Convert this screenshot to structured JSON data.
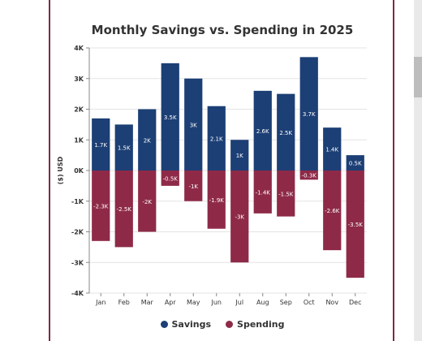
{
  "chart_data": {
    "type": "bar",
    "title": "Monthly Savings vs. Spending in 2025",
    "ylabel": "($) USD",
    "xlabel": "",
    "ylim": [
      -4000,
      4000
    ],
    "yticks": [
      4000,
      3000,
      2000,
      1000,
      0,
      -1000,
      -2000,
      -3000,
      -4000
    ],
    "ytick_labels": [
      "4K",
      "3K",
      "2K",
      "1K",
      "0K",
      "-1K",
      "-2K",
      "-3K",
      "-4K"
    ],
    "categories": [
      "Jan",
      "Feb",
      "Mar",
      "Apr",
      "May",
      "Jun",
      "Jul",
      "Aug",
      "Sep",
      "Oct",
      "Nov",
      "Dec"
    ],
    "grid": true,
    "legend_position": "bottom",
    "series": [
      {
        "name": "Savings",
        "color": "#1c3f75",
        "values": [
          1700,
          1500,
          2000,
          3500,
          3000,
          2100,
          1000,
          2600,
          2500,
          3700,
          1400,
          500
        ],
        "labels": [
          "1.7K",
          "1.5K",
          "2K",
          "3.5K",
          "3K",
          "2.1K",
          "1K",
          "2.6K",
          "2.5K",
          "3.7K",
          "1.4K",
          "0.5K"
        ]
      },
      {
        "name": "Spending",
        "color": "#8e2a48",
        "values": [
          -2300,
          -2500,
          -2000,
          -500,
          -1000,
          -1900,
          -3000,
          -1400,
          -1500,
          -300,
          -2600,
          -3500
        ],
        "labels": [
          "-2.3K",
          "-2.5K",
          "-2K",
          "-0.5K",
          "-1K",
          "-1.9K",
          "-3K",
          "-1.4K",
          "-1.5K",
          "-0.3K",
          "-2.6K",
          "-3.5K"
        ]
      }
    ]
  }
}
